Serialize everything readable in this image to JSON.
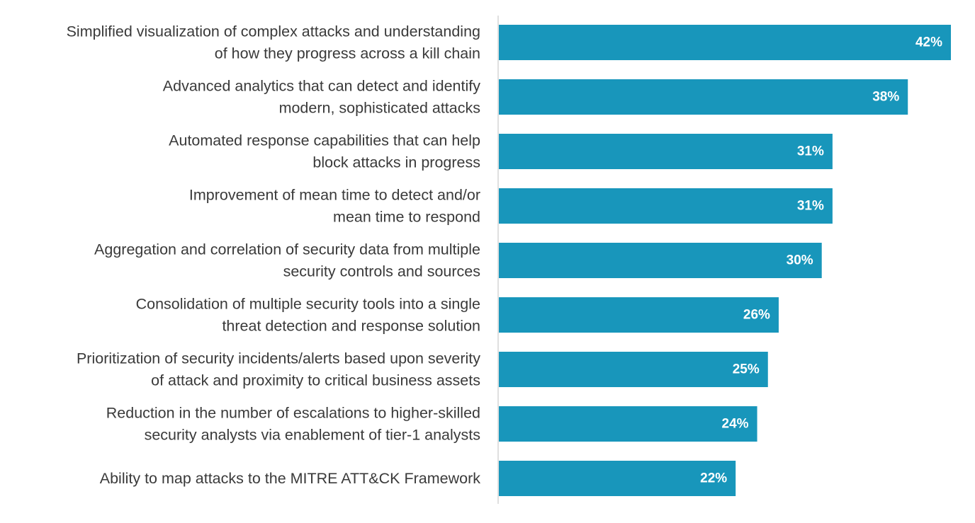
{
  "colors": {
    "bar": "#1896bb",
    "axis": "#d5d5d5",
    "label_text": "#3a3a3a",
    "value_text": "#ffffff",
    "background": "#ffffff"
  },
  "chart_data": {
    "type": "bar",
    "orientation": "horizontal",
    "title": "",
    "xlabel": "",
    "ylabel": "",
    "grid": false,
    "legend": "none",
    "xlim": [
      0,
      42
    ],
    "categories": [
      [
        "Simplified visualization of complex attacks and understanding",
        "of how they progress across a kill chain"
      ],
      [
        "Advanced analytics that can detect and identify",
        "modern, sophisticated attacks"
      ],
      [
        "Automated response capabilities that can help",
        "block attacks in progress"
      ],
      [
        "Improvement of mean time to detect and/or",
        "mean time to respond"
      ],
      [
        "Aggregation and correlation of security data from multiple",
        "security controls and sources"
      ],
      [
        "Consolidation of multiple security tools into a single",
        "threat detection and response solution"
      ],
      [
        "Prioritization of security incidents/alerts based upon severity",
        "of attack and proximity to critical business assets"
      ],
      [
        "Reduction in the number of escalations to higher-skilled",
        "security analysts via enablement of tier-1 analysts"
      ],
      [
        "Ability to map attacks to the MITRE ATT&CK Framework"
      ]
    ],
    "values": [
      42,
      38,
      31,
      31,
      30,
      26,
      25,
      24,
      22
    ],
    "value_labels": [
      "42%",
      "38%",
      "31%",
      "31%",
      "30%",
      "26%",
      "25%",
      "24%",
      "22%"
    ]
  }
}
